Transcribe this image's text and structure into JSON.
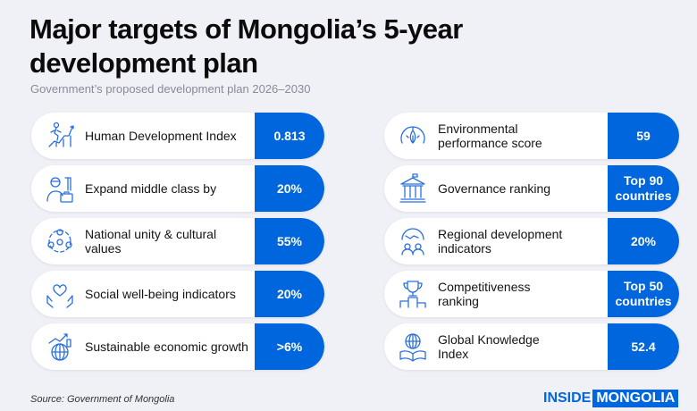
{
  "header": {
    "title_line1": "Major targets of Mongolia’s 5-year",
    "title_line2": "development plan",
    "subtitle": "Government’s proposed development plan 2026–2030"
  },
  "left": [
    {
      "icon": "climbing-person-icon",
      "label": "Human Development Index",
      "value": "0.813"
    },
    {
      "icon": "businessman-briefcase-icon",
      "label": "Expand middle class by",
      "value": "20%"
    },
    {
      "icon": "people-circle-icon",
      "label": "National unity & cultural values",
      "value": "55%"
    },
    {
      "icon": "heart-hands-icon",
      "label": "Social well-being indicators",
      "value": "20%"
    },
    {
      "icon": "globe-growth-chart-icon",
      "label": "Sustainable economic growth",
      "value": ">6%"
    }
  ],
  "right": [
    {
      "icon": "gauge-leaf-icon",
      "label": "Environmental performance score",
      "value": "59"
    },
    {
      "icon": "government-building-icon",
      "label": "Governance ranking",
      "value": "Top 90 countries"
    },
    {
      "icon": "region-map-people-icon",
      "label": "Regional development indicators",
      "value": "20%"
    },
    {
      "icon": "trophy-podium-icon",
      "label": "Competitiveness ranking",
      "value": "Top 50 countries"
    },
    {
      "icon": "globe-book-icon",
      "label": "Global Knowledge Index",
      "value": "52.4"
    }
  ],
  "footer": {
    "source": "Source: Government of Mongolia",
    "logo_part1": "INSIDE",
    "logo_part2": "MONGOLIA"
  },
  "colors": {
    "accent": "#0066dd",
    "background": "#f0f0f7"
  }
}
